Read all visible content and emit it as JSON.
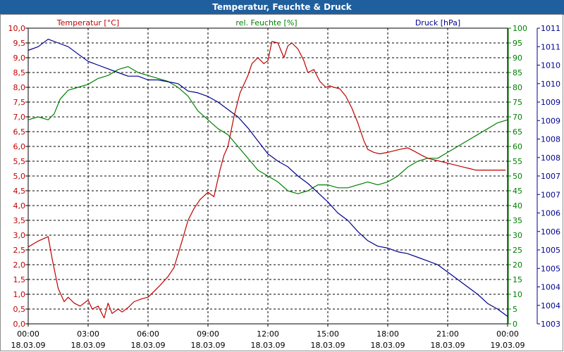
{
  "window": {
    "title": "Temperatur, Feuchte & Druck"
  },
  "colors": {
    "temperature": "#c00000",
    "humidity": "#008000",
    "pressure": "#000090",
    "titlebar": "#1f5f9e"
  },
  "chart_data": {
    "type": "line",
    "title": "Temperatur, Feuchte & Druck",
    "legend": [
      "Temperatur [°C]",
      "rel. Feuchte [%]",
      "Druck [hPa]"
    ],
    "x_ticks": [
      {
        "time": "00:00",
        "date": "18.03.09"
      },
      {
        "time": "03:00",
        "date": "18.03.09"
      },
      {
        "time": "06:00",
        "date": "18.03.09"
      },
      {
        "time": "09:00",
        "date": "18.03.09"
      },
      {
        "time": "12:00",
        "date": "18.03.09"
      },
      {
        "time": "15:00",
        "date": "18.03.09"
      },
      {
        "time": "18:00",
        "date": "18.03.09"
      },
      {
        "time": "21:00",
        "date": "18.03.09"
      },
      {
        "time": "00:00",
        "date": "19.03.09"
      }
    ],
    "x_hours": [
      0,
      3,
      6,
      9,
      12,
      15,
      18,
      21,
      24
    ],
    "y_left": {
      "label": "Temperatur [°C]",
      "min": 0,
      "max": 10,
      "ticks": [
        "0,0",
        "0,5",
        "1,0",
        "1,5",
        "2,0",
        "2,5",
        "3,0",
        "3,5",
        "4,0",
        "4,5",
        "5,0",
        "5,5",
        "6,0",
        "6,5",
        "7,0",
        "7,5",
        "8,0",
        "8,5",
        "9,0",
        "9,5",
        "10,0"
      ]
    },
    "y_mid": {
      "label": "rel. Feuchte [%]",
      "min": 0,
      "max": 100,
      "ticks": [
        "0",
        "5",
        "10",
        "15",
        "20",
        "25",
        "30",
        "35",
        "40",
        "45",
        "50",
        "55",
        "60",
        "65",
        "70",
        "75",
        "80",
        "85",
        "90",
        "95",
        "100"
      ]
    },
    "y_right": {
      "label": "Druck [hPa]",
      "min": 1003.5,
      "max": 1011.5,
      "ticks": [
        "1003",
        "1004",
        "1004",
        "1005",
        "1005",
        "1006",
        "1006",
        "1007",
        "1007",
        "1008",
        "1008",
        "1009",
        "1009",
        "1010",
        "1010",
        "1011",
        "1011"
      ]
    },
    "series": [
      {
        "name": "Temperatur [°C]",
        "axis": "left",
        "hours": [
          0,
          0.5,
          1,
          1.2,
          1.5,
          1.8,
          2,
          2.3,
          2.6,
          3,
          3.2,
          3.5,
          3.8,
          4,
          4.2,
          4.5,
          4.7,
          5,
          5.3,
          5.7,
          6,
          6.3,
          6.6,
          7,
          7.3,
          7.7,
          8,
          8.3,
          8.6,
          9,
          9.3,
          9.6,
          9.8,
          10,
          10.3,
          10.6,
          11,
          11.2,
          11.5,
          11.8,
          12,
          12.2,
          12.5,
          12.8,
          13,
          13.2,
          13.5,
          13.8,
          14,
          14.3,
          14.6,
          14.9,
          15.1,
          15.3,
          15.6,
          15.9,
          16.2,
          16.5,
          16.8,
          17,
          17.3,
          17.6,
          18,
          18.3,
          18.6,
          19,
          19.3,
          19.7,
          20,
          20.3,
          20.6,
          20.9,
          21.2,
          21.5,
          21.8,
          22.1,
          22.4,
          22.7,
          23,
          23.3,
          23.6,
          23.9
        ],
        "values": [
          2.6,
          2.8,
          2.95,
          2.2,
          1.2,
          0.75,
          0.9,
          0.7,
          0.6,
          0.8,
          0.5,
          0.6,
          0.2,
          0.7,
          0.35,
          0.5,
          0.4,
          0.55,
          0.75,
          0.85,
          0.9,
          1.1,
          1.3,
          1.6,
          1.9,
          2.8,
          3.5,
          3.9,
          4.2,
          4.45,
          4.3,
          5.2,
          5.7,
          6.0,
          7.0,
          7.8,
          8.4,
          8.8,
          9.0,
          8.8,
          8.9,
          9.55,
          9.5,
          9.0,
          9.4,
          9.5,
          9.3,
          8.9,
          8.5,
          8.6,
          8.2,
          8.0,
          8.05,
          8.0,
          7.95,
          7.7,
          7.3,
          6.8,
          6.2,
          5.9,
          5.8,
          5.75,
          5.8,
          5.85,
          5.9,
          5.95,
          5.85,
          5.7,
          5.6,
          5.55,
          5.5,
          5.45,
          5.4,
          5.35,
          5.3,
          5.25,
          5.2,
          5.2,
          5.2,
          5.2,
          5.2,
          5.2
        ]
      },
      {
        "name": "rel. Feuchte [%]",
        "axis": "mid",
        "hours": [
          0,
          0.5,
          1,
          1.3,
          1.6,
          2,
          2.5,
          3,
          3.5,
          4,
          4.5,
          5,
          5.5,
          6,
          6.5,
          7,
          7.5,
          8,
          8.5,
          9,
          9.5,
          10,
          10.5,
          11,
          11.5,
          12,
          12.5,
          13,
          13.5,
          14,
          14.5,
          15,
          15.5,
          16,
          16.5,
          17,
          17.5,
          18,
          18.5,
          19,
          19.5,
          20,
          20.5,
          21,
          21.5,
          22,
          22.5,
          23,
          23.5,
          24
        ],
        "values": [
          69,
          70,
          69,
          71,
          76,
          79,
          80,
          81,
          83,
          84,
          86,
          87,
          85,
          84,
          83,
          82,
          80,
          77,
          72,
          69,
          66,
          64,
          60,
          56,
          52,
          50,
          48,
          45,
          44,
          45,
          47,
          47,
          46,
          46,
          47,
          48,
          47,
          48,
          50,
          53,
          55,
          56,
          56,
          58,
          60,
          62,
          64,
          66,
          68,
          69
        ]
      },
      {
        "name": "Druck [hPa]",
        "axis": "right",
        "hours": [
          0,
          0.5,
          1,
          1.5,
          2,
          2.5,
          3,
          3.5,
          4,
          4.5,
          5,
          5.5,
          6,
          6.5,
          7,
          7.5,
          8,
          8.5,
          9,
          9.5,
          10,
          10.5,
          11,
          11.5,
          12,
          12.5,
          13,
          13.5,
          14,
          14.5,
          15,
          15.5,
          16,
          16.5,
          17,
          17.5,
          18,
          18.5,
          19,
          19.5,
          20,
          20.5,
          21,
          21.5,
          22,
          22.5,
          23,
          23.5,
          24
        ],
        "values": [
          1010.9,
          1011.0,
          1011.2,
          1011.1,
          1011.0,
          1010.8,
          1010.6,
          1010.5,
          1010.4,
          1010.3,
          1010.2,
          1010.2,
          1010.1,
          1010.1,
          1010.05,
          1010.0,
          1009.8,
          1009.75,
          1009.65,
          1009.5,
          1009.3,
          1009.1,
          1008.8,
          1008.45,
          1008.1,
          1007.9,
          1007.75,
          1007.5,
          1007.3,
          1007.05,
          1006.8,
          1006.5,
          1006.3,
          1006.0,
          1005.75,
          1005.6,
          1005.55,
          1005.45,
          1005.4,
          1005.3,
          1005.2,
          1005.1,
          1004.9,
          1004.7,
          1004.5,
          1004.3,
          1004.05,
          1003.9,
          1003.7
        ]
      }
    ]
  }
}
